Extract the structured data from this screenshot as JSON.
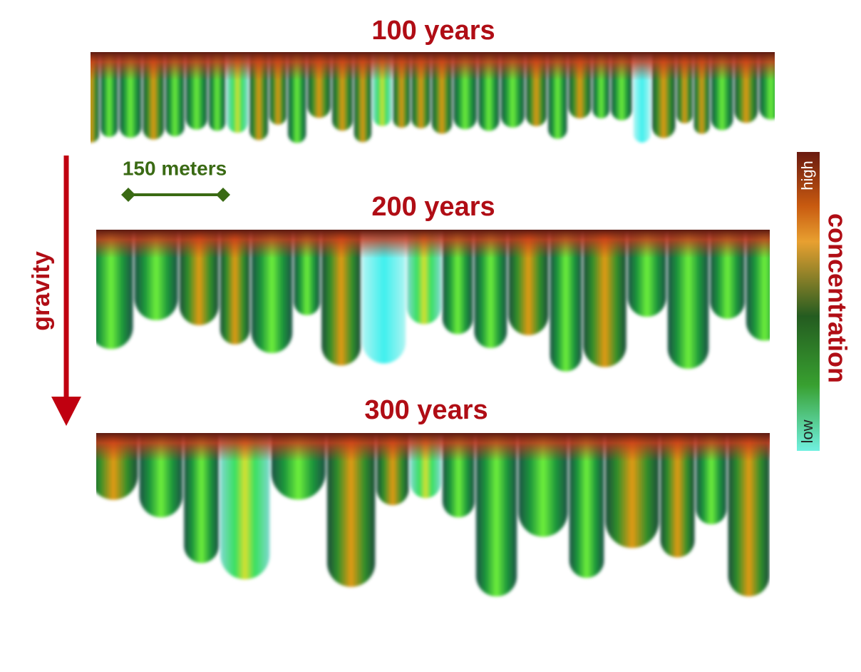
{
  "panels": [
    {
      "title": "100 years"
    },
    {
      "title": "200 years"
    },
    {
      "title": "300 years"
    }
  ],
  "gravity_label": "gravity",
  "scale_bar": {
    "label": "150 meters"
  },
  "colorbar": {
    "title": "concentration",
    "high": "high",
    "low": "low"
  }
}
